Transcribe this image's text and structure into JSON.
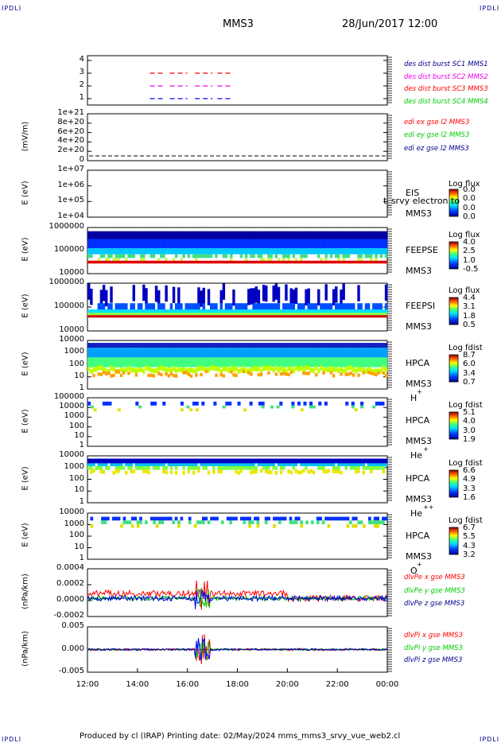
{
  "corners": {
    "tl": "IPDLI",
    "tr": "IPDLI",
    "bl": "IPDLI",
    "br": "IPDLI"
  },
  "header": {
    "mission": "MMS3",
    "datetime": "28/Jun/2017 12:00"
  },
  "footer": "Produced by cl (IRAP)   Printing date: 02/May/2024   mms_mms3_srvy_vue_web2.cl",
  "x_axis": {
    "ticks": [
      "12:00",
      "14:00",
      "16:00",
      "18:00",
      "20:00",
      "22:00",
      "00:00"
    ]
  },
  "colors": {
    "red": "#ff0000",
    "green": "#00cc00",
    "blue": "#0000ff",
    "magenta": "#ee00ee",
    "navy": "#00008b"
  },
  "chart_data": [
    {
      "id": "p1",
      "type": "line",
      "yticks": [
        "4",
        "3",
        "2",
        "1"
      ],
      "legend": [
        {
          "text": "des dist burst SC1 MMS1",
          "color": "#00008b"
        },
        {
          "text": "des dist burst SC2 MMS2",
          "color": "#ee00ee"
        },
        {
          "text": "des dist burst SC3 MMS3",
          "color": "#ff0000"
        },
        {
          "text": "des dist burst SC4 MMS4",
          "color": "#00cc00"
        }
      ],
      "series": [
        {
          "y": 3,
          "color": "#ff0000",
          "x": [
            [
              14.5,
              15.1
            ],
            [
              15.3,
              16.0
            ],
            [
              16.3,
              17.0
            ],
            [
              17.2,
              17.8
            ]
          ]
        },
        {
          "y": 2,
          "color": "#ee00ee",
          "x": [
            [
              14.5,
              15.1
            ],
            [
              15.3,
              16.0
            ],
            [
              16.3,
              17.0
            ],
            [
              17.2,
              17.8
            ]
          ]
        },
        {
          "y": 1,
          "color": "#0000ff",
          "x": [
            [
              14.5,
              15.1
            ],
            [
              15.3,
              16.0
            ],
            [
              16.3,
              17.0
            ],
            [
              17.2,
              17.8
            ]
          ]
        }
      ],
      "xlim": [
        12,
        24
      ],
      "ylim": [
        0.5,
        4.5
      ]
    },
    {
      "id": "p2",
      "type": "line",
      "ylabel": "(mV/m)",
      "yticks": [
        "1e+21",
        "8e+20",
        "6e+20",
        "4e+20",
        "2e+20",
        "0"
      ],
      "legend": [
        {
          "text": "edi ex gse l2 MMS3",
          "color": "#ff0000"
        },
        {
          "text": "edi ey gse l2 MMS3",
          "color": "#00cc00"
        },
        {
          "text": "edi ez gse l2 MMS3",
          "color": "#00008b"
        }
      ],
      "ylim": [
        0,
        1e+21
      ]
    },
    {
      "id": "p3",
      "type": "heatmap",
      "ylabel": "E (eV)",
      "yticks": [
        "1e+07",
        "1e+06",
        "1e+05",
        "1e+04"
      ],
      "instrument": [
        "EIS",
        "MMS3"
      ],
      "overlay_text": "t_srvy electron to",
      "colorbar": {
        "title": "Log flux",
        "ticks": [
          "0.0",
          "0.0",
          "0.0",
          "0.0"
        ]
      }
    },
    {
      "id": "p4",
      "type": "heatmap",
      "ylabel": "E (eV)",
      "yticks": [
        "1000000",
        "100000",
        "10000"
      ],
      "instrument": [
        "FEEPSE",
        "MMS3"
      ],
      "colorbar": {
        "title": "Log flux",
        "ticks": [
          "4.0",
          "2.5",
          "1.0",
          "-0.5"
        ]
      }
    },
    {
      "id": "p5",
      "type": "heatmap",
      "ylabel": "E (eV)",
      "yticks": [
        "1000000",
        "100000",
        "10000"
      ],
      "instrument": [
        "FEEPSI",
        "MMS3"
      ],
      "colorbar": {
        "title": "Log flux",
        "ticks": [
          "4.4",
          "3.1",
          "1.8",
          "0.5"
        ]
      }
    },
    {
      "id": "p6",
      "type": "heatmap",
      "ylabel": "E (eV)",
      "yticks": [
        "10000",
        "1000",
        "100",
        "10",
        "1"
      ],
      "instrument": [
        "HPCA",
        "MMS3",
        "H",
        "+"
      ],
      "colorbar": {
        "title": "Log fdist",
        "ticks": [
          "8.7",
          "6.0",
          "3.4",
          "0.7"
        ]
      }
    },
    {
      "id": "p7",
      "type": "heatmap",
      "ylabel": "E (eV)",
      "yticks": [
        "100000",
        "10000",
        "1000",
        "100",
        "10",
        "1"
      ],
      "instrument": [
        "HPCA",
        "MMS3",
        "He",
        "+"
      ],
      "colorbar": {
        "title": "Log fdist",
        "ticks": [
          "5.1",
          "4.0",
          "3.0",
          "1.9"
        ]
      }
    },
    {
      "id": "p8",
      "type": "heatmap",
      "ylabel": "E (eV)",
      "yticks": [
        "10000",
        "1000",
        "100",
        "10",
        "1"
      ],
      "instrument": [
        "HPCA",
        "MMS3",
        "He",
        "++"
      ],
      "colorbar": {
        "title": "Log fdist",
        "ticks": [
          "6.6",
          "4.9",
          "3.3",
          "1.6"
        ]
      }
    },
    {
      "id": "p9",
      "type": "heatmap",
      "ylabel": "E (eV)",
      "yticks": [
        "10000",
        "1000",
        "100",
        "10",
        "1"
      ],
      "instrument": [
        "HPCA",
        "MMS3",
        "O",
        "+"
      ],
      "colorbar": {
        "title": "Log fdist",
        "ticks": [
          "6.7",
          "5.5",
          "4.3",
          "3.2"
        ]
      }
    },
    {
      "id": "p10",
      "type": "line",
      "ylabel": "(nPa/km)",
      "yticks": [
        "0.0004",
        "0.0002",
        "0.0000",
        "-0.0002"
      ],
      "legend": [
        {
          "text": "dlvPe x gse MMS3",
          "color": "#ff0000"
        },
        {
          "text": "dlvPe y gse MMS3",
          "color": "#00cc00"
        },
        {
          "text": "dlvPe z gse MMS3",
          "color": "#00008b"
        }
      ],
      "ylim": [
        -0.0003,
        0.00045
      ]
    },
    {
      "id": "p11",
      "type": "line",
      "ylabel": "(nPa/km)",
      "yticks": [
        "0.005",
        "0.000",
        "-0.005"
      ],
      "legend": [
        {
          "text": "dlvPi x gse MMS3",
          "color": "#ff0000"
        },
        {
          "text": "dlvPi y gse MMS3",
          "color": "#00cc00"
        },
        {
          "text": "dlvPi z gse MMS3",
          "color": "#00008b"
        }
      ],
      "ylim": [
        -0.009,
        0.009
      ]
    }
  ]
}
